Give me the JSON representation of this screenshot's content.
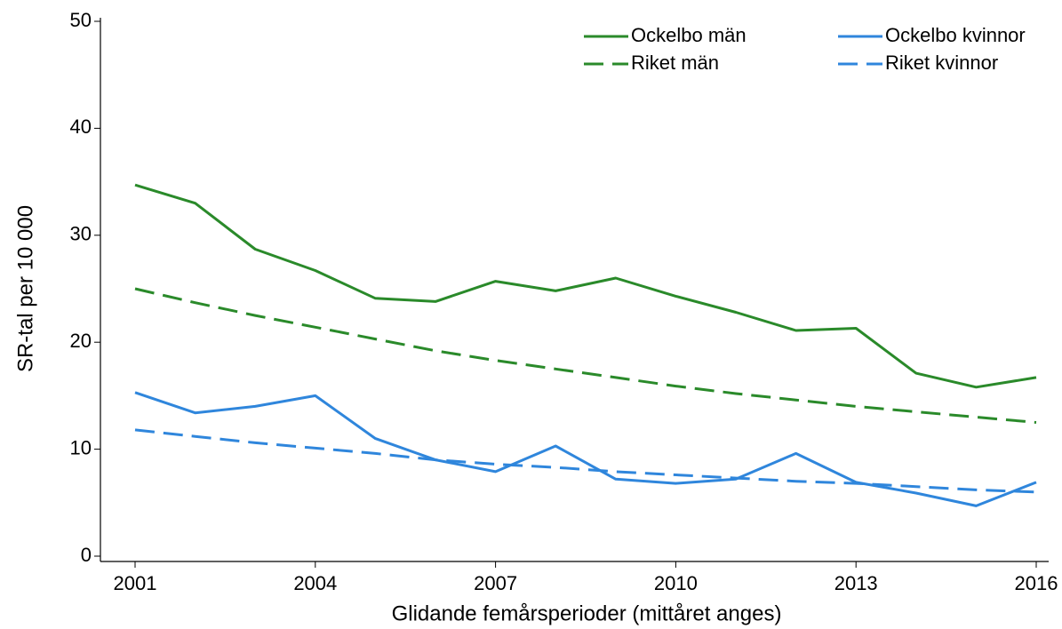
{
  "chart_data": {
    "type": "line",
    "x_label": "Glidande femårsperioder (mittåret anges)",
    "y_label": "SR-tal per 10 000",
    "x": [
      2001,
      2002,
      2003,
      2004,
      2005,
      2006,
      2007,
      2008,
      2009,
      2010,
      2011,
      2012,
      2013,
      2014,
      2015,
      2016
    ],
    "series": [
      {
        "name": "Ockelbo män",
        "color": "#2a8a2a",
        "line_style": "solid",
        "values": [
          34.7,
          33.0,
          28.7,
          26.7,
          24.1,
          23.8,
          25.7,
          24.8,
          26.0,
          24.3,
          22.8,
          21.1,
          21.3,
          17.1,
          15.8,
          16.7
        ]
      },
      {
        "name": "Ockelbo kvinnor",
        "color": "#2f86dc",
        "line_style": "solid",
        "values": [
          15.3,
          13.4,
          14.0,
          15.0,
          11.0,
          9.0,
          7.9,
          10.3,
          7.2,
          6.8,
          7.2,
          9.6,
          6.9,
          5.9,
          4.7,
          6.9
        ]
      },
      {
        "name": "Riket män",
        "color": "#2a8a2a",
        "line_style": "dashed",
        "values": [
          25.0,
          23.7,
          22.5,
          21.4,
          20.3,
          19.2,
          18.3,
          17.5,
          16.7,
          15.9,
          15.2,
          14.6,
          14.0,
          13.5,
          13.0,
          12.5
        ]
      },
      {
        "name": "Riket kvinnor",
        "color": "#2f86dc",
        "line_style": "dashed",
        "values": [
          11.8,
          11.2,
          10.6,
          10.1,
          9.6,
          9.0,
          8.6,
          8.3,
          7.9,
          7.6,
          7.3,
          7.0,
          6.8,
          6.5,
          6.2,
          6.0
        ]
      }
    ],
    "xlim": [
      2001,
      2016
    ],
    "xticks": [
      2001,
      2004,
      2007,
      2010,
      2013,
      2016
    ],
    "ylim": [
      0,
      50
    ],
    "yticks": [
      0,
      10,
      20,
      30,
      40,
      50
    ],
    "legend": "top-right",
    "grid": false
  }
}
